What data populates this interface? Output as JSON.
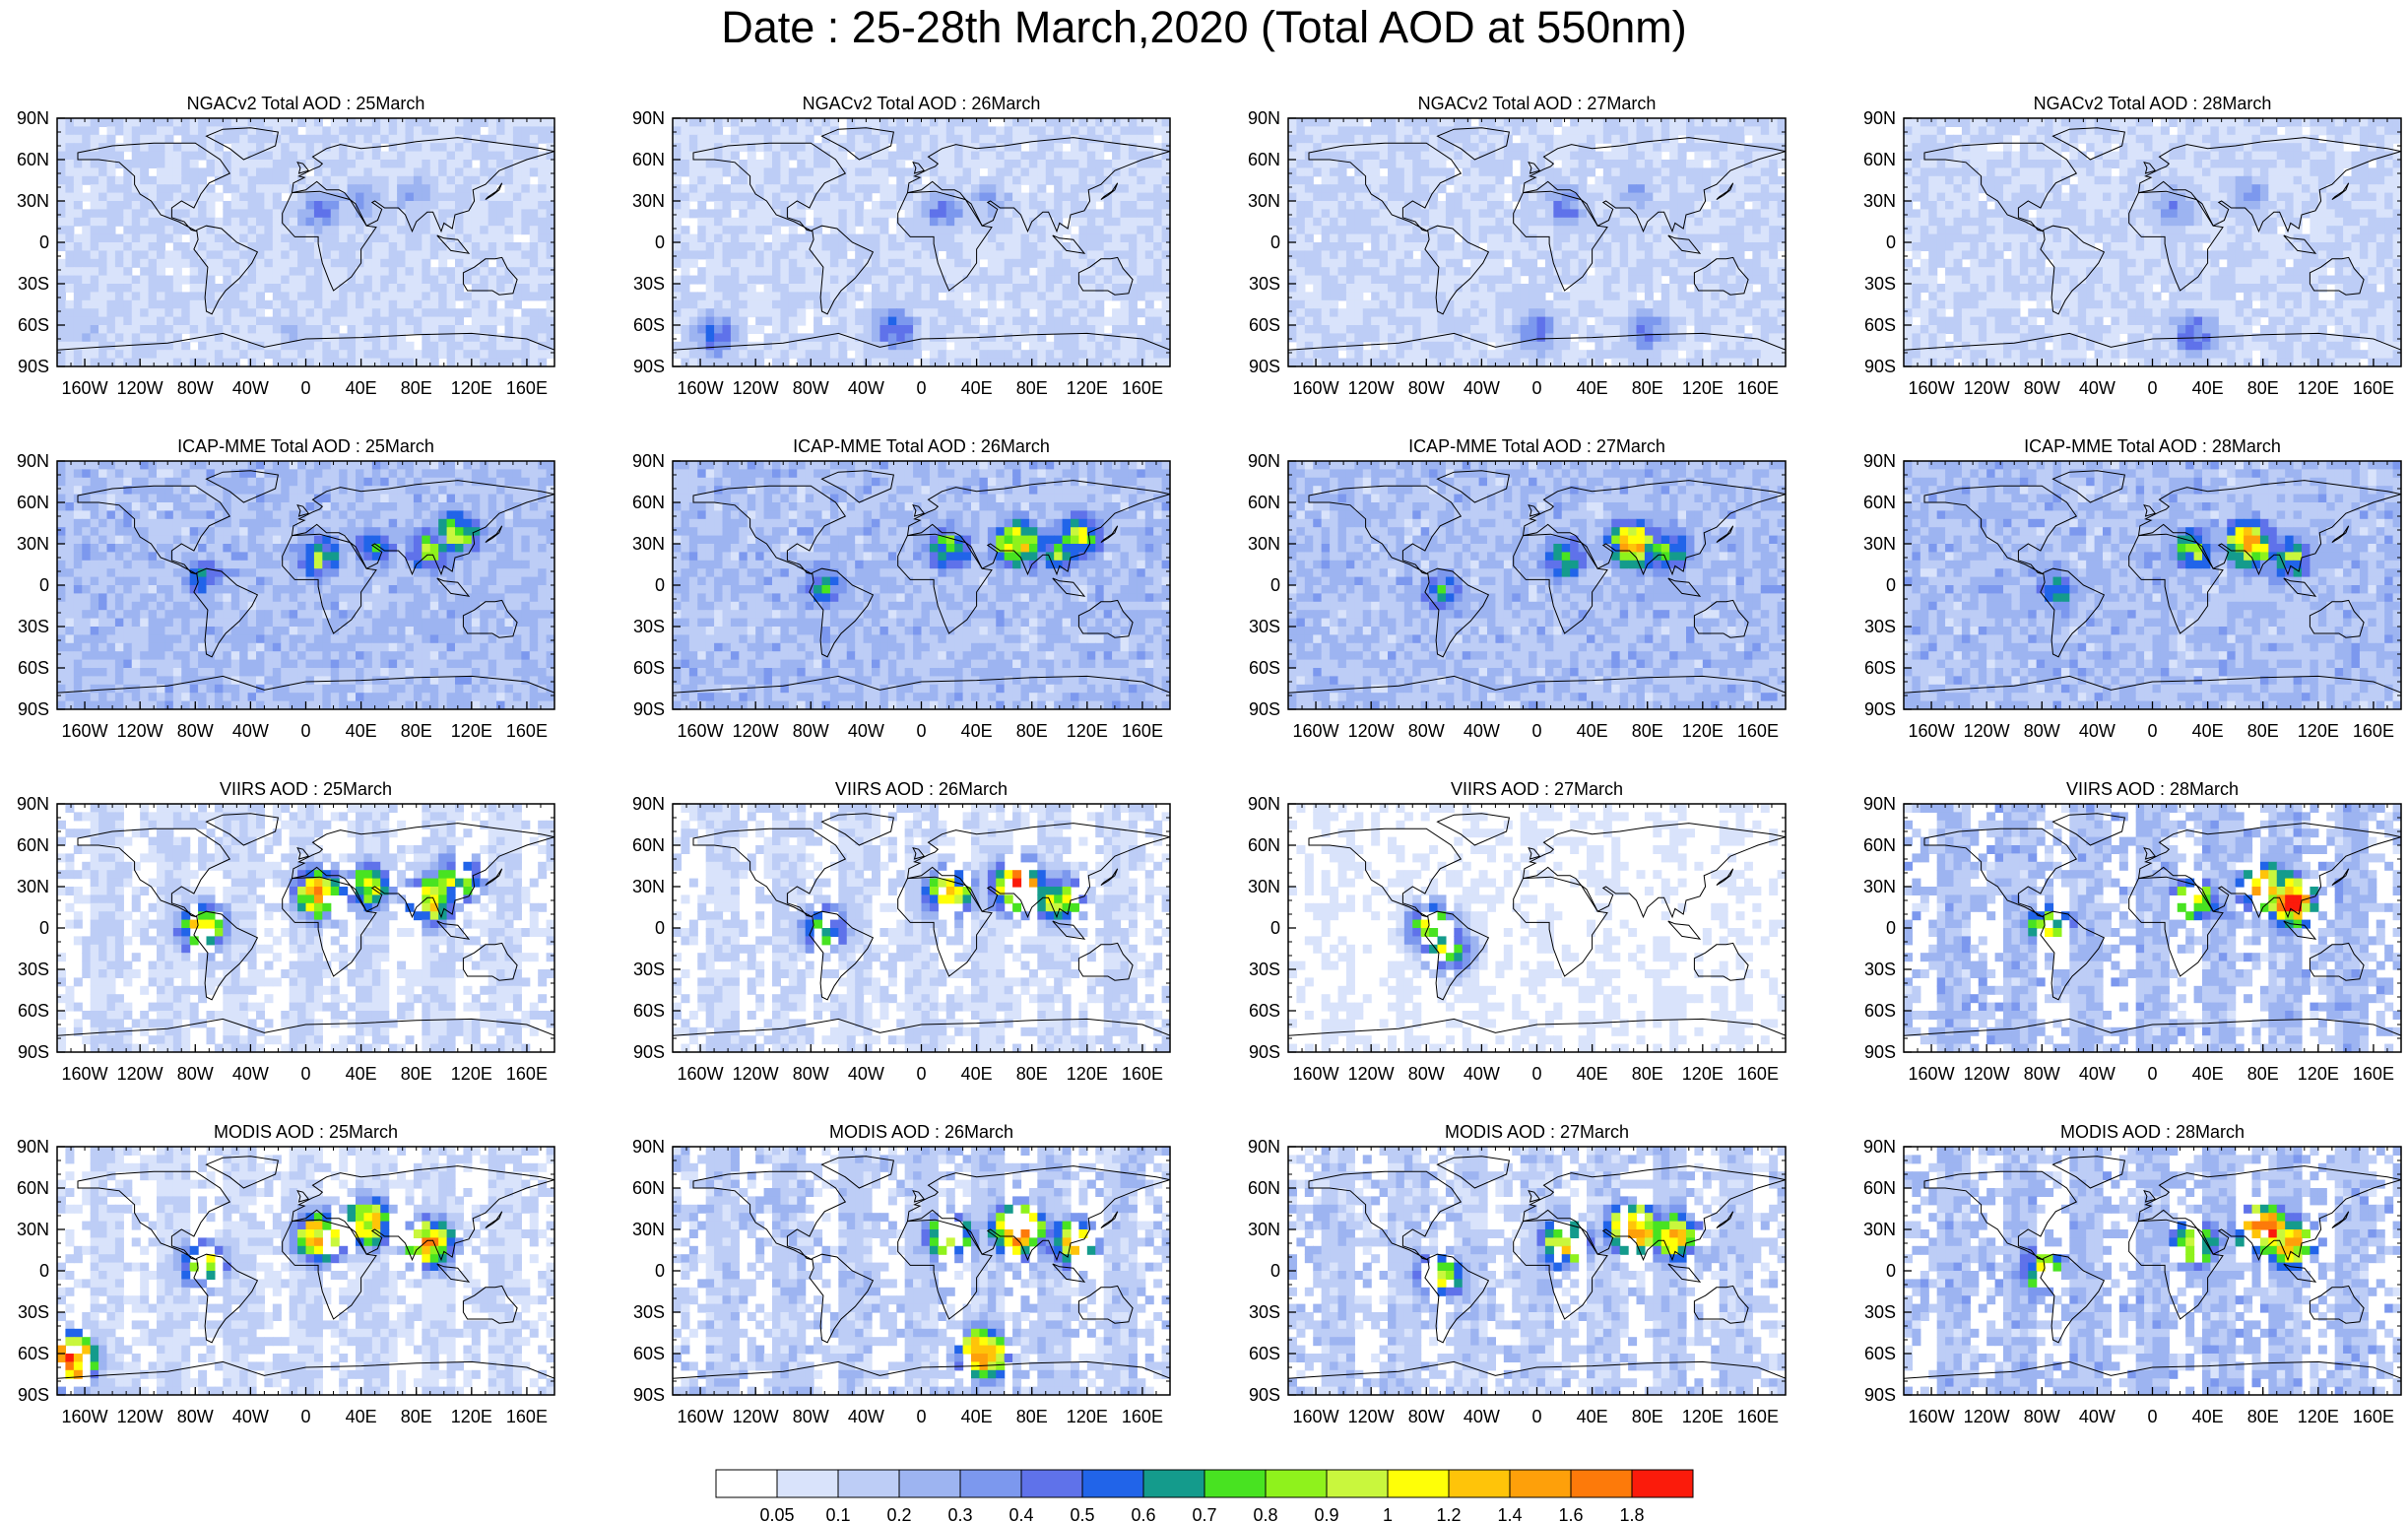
{
  "title": "Date : 25-28th March,2020 (Total AOD at 550nm)",
  "chart_data": [
    {
      "type": "heatmap",
      "title": "NGACv2 Total AOD : 25March",
      "model": "NGACv2",
      "day": "25March",
      "xticks": [
        "160W",
        "120W",
        "80W",
        "40W",
        "0",
        "40E",
        "80E",
        "120E",
        "160E"
      ],
      "yticks": [
        "90N",
        "60N",
        "30N",
        "0",
        "30S",
        "60S",
        "90S"
      ],
      "xlim": [
        -180,
        180
      ],
      "ylim": [
        -90,
        90
      ],
      "background_level": 0.1,
      "hotspots": [
        {
          "lon": 10,
          "lat": 22,
          "level": 0.4
        },
        {
          "lon": 40,
          "lat": 30,
          "level": 0.3
        },
        {
          "lon": 80,
          "lat": 35,
          "level": 0.3
        },
        {
          "lon": -160,
          "lat": -62,
          "level": 0.2
        },
        {
          "lon": -10,
          "lat": -65,
          "level": 0.2
        }
      ]
    },
    {
      "type": "heatmap",
      "title": "NGACv2 Total AOD : 26March",
      "model": "NGACv2",
      "day": "26March",
      "xticks": [
        "160W",
        "120W",
        "80W",
        "40W",
        "0",
        "40E",
        "80E",
        "120E",
        "160E"
      ],
      "yticks": [
        "90N",
        "60N",
        "30N",
        "0",
        "30S",
        "60S",
        "90S"
      ],
      "xlim": [
        -180,
        180
      ],
      "ylim": [
        -90,
        90
      ],
      "background_level": 0.1,
      "hotspots": [
        {
          "lon": 15,
          "lat": 22,
          "level": 0.4
        },
        {
          "lon": 50,
          "lat": 30,
          "level": 0.3
        },
        {
          "lon": -150,
          "lat": -67,
          "level": 0.5
        },
        {
          "lon": -20,
          "lat": -62,
          "level": 0.5
        }
      ]
    },
    {
      "type": "heatmap",
      "title": "NGACv2 Total AOD : 27March",
      "model": "NGACv2",
      "day": "27March",
      "xticks": [
        "160W",
        "120W",
        "80W",
        "40W",
        "0",
        "40E",
        "80E",
        "120E",
        "160E"
      ],
      "yticks": [
        "90N",
        "60N",
        "30N",
        "0",
        "30S",
        "60S",
        "90S"
      ],
      "xlim": [
        -180,
        180
      ],
      "ylim": [
        -90,
        90
      ],
      "background_level": 0.1,
      "hotspots": [
        {
          "lon": 20,
          "lat": 25,
          "level": 0.4
        },
        {
          "lon": 70,
          "lat": 35,
          "level": 0.3
        },
        {
          "lon": 0,
          "lat": -65,
          "level": 0.5
        },
        {
          "lon": 80,
          "lat": -65,
          "level": 0.4
        }
      ]
    },
    {
      "type": "heatmap",
      "title": "NGACv2 Total AOD : 28March",
      "model": "NGACv2",
      "day": "28March",
      "xticks": [
        "160W",
        "120W",
        "80W",
        "40W",
        "0",
        "40E",
        "80E",
        "120E",
        "160E"
      ],
      "yticks": [
        "90N",
        "60N",
        "30N",
        "0",
        "30S",
        "60S",
        "90S"
      ],
      "xlim": [
        -180,
        180
      ],
      "ylim": [
        -90,
        90
      ],
      "background_level": 0.1,
      "hotspots": [
        {
          "lon": 15,
          "lat": 25,
          "level": 0.4
        },
        {
          "lon": 70,
          "lat": 35,
          "level": 0.3
        },
        {
          "lon": 30,
          "lat": -67,
          "level": 0.5
        }
      ]
    },
    {
      "type": "heatmap",
      "title": "ICAP-MME Total AOD : 25March",
      "model": "ICAP-MME",
      "day": "25March",
      "xticks": [
        "160W",
        "120W",
        "80W",
        "40W",
        "0",
        "40E",
        "80E",
        "120E",
        "160E"
      ],
      "yticks": [
        "90N",
        "60N",
        "30N",
        "0",
        "30S",
        "60S",
        "90S"
      ],
      "xlim": [
        -180,
        180
      ],
      "ylim": [
        -90,
        90
      ],
      "background_level": 0.2,
      "hotspots": [
        {
          "lon": 10,
          "lat": 20,
          "level": 0.8
        },
        {
          "lon": 50,
          "lat": 28,
          "level": 0.6
        },
        {
          "lon": 90,
          "lat": 25,
          "level": 0.8
        },
        {
          "lon": 110,
          "lat": 38,
          "level": 0.9
        },
        {
          "lon": -75,
          "lat": 5,
          "level": 0.6
        }
      ]
    },
    {
      "type": "heatmap",
      "title": "ICAP-MME Total AOD : 26March",
      "model": "ICAP-MME",
      "day": "26March",
      "xticks": [
        "160W",
        "120W",
        "80W",
        "40W",
        "0",
        "40E",
        "80E",
        "120E",
        "160E"
      ],
      "yticks": [
        "90N",
        "60N",
        "30N",
        "0",
        "30S",
        "60S",
        "90S"
      ],
      "xlim": [
        -180,
        180
      ],
      "ylim": [
        -90,
        90
      ],
      "background_level": 0.2,
      "hotspots": [
        {
          "lon": 20,
          "lat": 25,
          "level": 0.8
        },
        {
          "lon": 70,
          "lat": 30,
          "level": 1.2
        },
        {
          "lon": 100,
          "lat": 25,
          "level": 0.8
        },
        {
          "lon": 115,
          "lat": 35,
          "level": 0.9
        },
        {
          "lon": -70,
          "lat": 0,
          "level": 0.6
        }
      ]
    },
    {
      "type": "heatmap",
      "title": "ICAP-MME Total AOD : 27March",
      "model": "ICAP-MME",
      "day": "27March",
      "xticks": [
        "160W",
        "120W",
        "80W",
        "40W",
        "0",
        "40E",
        "80E",
        "120E",
        "160E"
      ],
      "yticks": [
        "90N",
        "60N",
        "30N",
        "0",
        "30S",
        "60S",
        "90S"
      ],
      "xlim": [
        -180,
        180
      ],
      "ylim": [
        -90,
        90
      ],
      "background_level": 0.2,
      "hotspots": [
        {
          "lon": 20,
          "lat": 20,
          "level": 0.8
        },
        {
          "lon": 70,
          "lat": 30,
          "level": 1.4
        },
        {
          "lon": 95,
          "lat": 25,
          "level": 0.8
        },
        {
          "lon": -70,
          "lat": -5,
          "level": 0.6
        }
      ]
    },
    {
      "type": "heatmap",
      "title": "ICAP-MME Total AOD : 28March",
      "model": "ICAP-MME",
      "day": "28March",
      "xticks": [
        "160W",
        "120W",
        "80W",
        "40W",
        "0",
        "40E",
        "80E",
        "120E",
        "160E"
      ],
      "yticks": [
        "90N",
        "60N",
        "30N",
        "0",
        "30S",
        "60S",
        "90S"
      ],
      "xlim": [
        -180,
        180
      ],
      "ylim": [
        -90,
        90
      ],
      "background_level": 0.2,
      "hotspots": [
        {
          "lon": 30,
          "lat": 25,
          "level": 0.8
        },
        {
          "lon": 70,
          "lat": 30,
          "level": 1.4
        },
        {
          "lon": 100,
          "lat": 20,
          "level": 0.8
        },
        {
          "lon": -70,
          "lat": -5,
          "level": 0.6
        }
      ]
    },
    {
      "type": "heatmap",
      "title": "VIIRS AOD : 25March",
      "model": "VIIRS",
      "day": "25March",
      "xticks": [
        "160W",
        "120W",
        "80W",
        "40W",
        "0",
        "40E",
        "80E",
        "120E",
        "160E"
      ],
      "yticks": [
        "90N",
        "60N",
        "30N",
        "0",
        "30S",
        "60S",
        "90S"
      ],
      "xlim": [
        -180,
        180
      ],
      "ylim": [
        -90,
        90
      ],
      "background_level": 0.1,
      "hotspots": [
        {
          "lon": 10,
          "lat": 25,
          "level": 1.4
        },
        {
          "lon": 45,
          "lat": 30,
          "level": 1.0
        },
        {
          "lon": 90,
          "lat": 20,
          "level": 1.2
        },
        {
          "lon": 110,
          "lat": 35,
          "level": 1.0
        },
        {
          "lon": -75,
          "lat": 0,
          "level": 1.2
        }
      ]
    },
    {
      "type": "heatmap",
      "title": "VIIRS AOD : 26March",
      "model": "VIIRS",
      "day": "26March",
      "xticks": [
        "160W",
        "120W",
        "80W",
        "40W",
        "0",
        "40E",
        "80E",
        "120E",
        "160E"
      ],
      "yticks": [
        "90N",
        "60N",
        "30N",
        "0",
        "30S",
        "60S",
        "90S"
      ],
      "xlim": [
        -180,
        180
      ],
      "ylim": [
        -90,
        90
      ],
      "background_level": 0.1,
      "hotspots": [
        {
          "lon": 20,
          "lat": 25,
          "level": 1.2
        },
        {
          "lon": 70,
          "lat": 30,
          "level": 1.8
        },
        {
          "lon": 100,
          "lat": 20,
          "level": 1.0
        },
        {
          "lon": -70,
          "lat": 0,
          "level": 0.8
        }
      ]
    },
    {
      "type": "heatmap",
      "title": "VIIRS AOD : 27March",
      "model": "VIIRS",
      "day": "27March",
      "xticks": [
        "160W",
        "120W",
        "80W",
        "40W",
        "0",
        "40E",
        "80E",
        "120E",
        "160E"
      ],
      "yticks": [
        "90N",
        "60N",
        "30N",
        "0",
        "30S",
        "60S",
        "90S"
      ],
      "xlim": [
        -180,
        180
      ],
      "ylim": [
        -90,
        90
      ],
      "background_level": 0.05,
      "hotspots": [
        {
          "lon": -75,
          "lat": 0,
          "level": 1.0
        },
        {
          "lon": -65,
          "lat": -15,
          "level": 0.9
        }
      ]
    },
    {
      "type": "heatmap",
      "title": "VIIRS AOD : 28March",
      "model": "VIIRS",
      "day": "28March",
      "xticks": [
        "160W",
        "120W",
        "80W",
        "40W",
        "0",
        "40E",
        "80E",
        "120E",
        "160E"
      ],
      "yticks": [
        "90N",
        "60N",
        "30N",
        "0",
        "30S",
        "60S",
        "90S"
      ],
      "xlim": [
        -180,
        180
      ],
      "ylim": [
        -90,
        90
      ],
      "background_level": 0.2,
      "hotspots": [
        {
          "lon": 30,
          "lat": 20,
          "level": 1.0
        },
        {
          "lon": 80,
          "lat": 30,
          "level": 1.4
        },
        {
          "lon": 100,
          "lat": 20,
          "level": 1.8
        },
        {
          "lon": -75,
          "lat": 0,
          "level": 1.0
        }
      ]
    },
    {
      "type": "heatmap",
      "title": "MODIS AOD : 25March",
      "model": "MODIS",
      "day": "25March",
      "xticks": [
        "160W",
        "120W",
        "80W",
        "40W",
        "0",
        "40E",
        "80E",
        "120E",
        "160E"
      ],
      "yticks": [
        "90N",
        "60N",
        "30N",
        "0",
        "30S",
        "60S",
        "90S"
      ],
      "xlim": [
        -180,
        180
      ],
      "ylim": [
        -90,
        90
      ],
      "background_level": 0.1,
      "hotspots": [
        {
          "lon": 10,
          "lat": 25,
          "level": 1.4
        },
        {
          "lon": 45,
          "lat": 35,
          "level": 1.2
        },
        {
          "lon": 90,
          "lat": 20,
          "level": 1.4
        },
        {
          "lon": -75,
          "lat": 5,
          "level": 1.0
        },
        {
          "lon": -170,
          "lat": -65,
          "level": 1.8
        }
      ]
    },
    {
      "type": "heatmap",
      "title": "MODIS AOD : 26March",
      "model": "MODIS",
      "day": "26March",
      "xticks": [
        "160W",
        "120W",
        "80W",
        "40W",
        "0",
        "40E",
        "80E",
        "120E",
        "160E"
      ],
      "yticks": [
        "90N",
        "60N",
        "30N",
        "0",
        "30S",
        "60S",
        "90S"
      ],
      "xlim": [
        -180,
        180
      ],
      "ylim": [
        -90,
        90
      ],
      "background_level": 0.15,
      "hotspots": [
        {
          "lon": 20,
          "lat": 25,
          "level": 1.2
        },
        {
          "lon": 70,
          "lat": 30,
          "level": 1.8
        },
        {
          "lon": 110,
          "lat": 20,
          "level": 1.2
        },
        {
          "lon": 45,
          "lat": -60,
          "level": 1.6
        }
      ]
    },
    {
      "type": "heatmap",
      "title": "MODIS AOD : 27March",
      "model": "MODIS",
      "day": "27March",
      "xticks": [
        "160W",
        "120W",
        "80W",
        "40W",
        "0",
        "40E",
        "80E",
        "120E",
        "160E"
      ],
      "yticks": [
        "90N",
        "60N",
        "30N",
        "0",
        "30S",
        "60S",
        "90S"
      ],
      "xlim": [
        -180,
        180
      ],
      "ylim": [
        -90,
        90
      ],
      "background_level": 0.15,
      "hotspots": [
        {
          "lon": 20,
          "lat": 20,
          "level": 1.2
        },
        {
          "lon": 70,
          "lat": 30,
          "level": 1.8
        },
        {
          "lon": 100,
          "lat": 25,
          "level": 1.2
        },
        {
          "lon": -70,
          "lat": -5,
          "level": 1.0
        }
      ]
    },
    {
      "type": "heatmap",
      "title": "MODIS AOD : 28March",
      "model": "MODIS",
      "day": "28March",
      "xticks": [
        "160W",
        "120W",
        "80W",
        "40W",
        "0",
        "40E",
        "80E",
        "120E",
        "160E"
      ],
      "yticks": [
        "90N",
        "60N",
        "30N",
        "0",
        "30S",
        "60S",
        "90S"
      ],
      "xlim": [
        -180,
        180
      ],
      "ylim": [
        -90,
        90
      ],
      "background_level": 0.2,
      "hotspots": [
        {
          "lon": 30,
          "lat": 20,
          "level": 1.2
        },
        {
          "lon": 80,
          "lat": 30,
          "level": 1.8
        },
        {
          "lon": 100,
          "lat": 20,
          "level": 1.4
        },
        {
          "lon": -80,
          "lat": 0,
          "level": 1.0
        }
      ]
    }
  ],
  "colorbar": {
    "labels": [
      "0.05",
      "0.1",
      "0.2",
      "0.3",
      "0.4",
      "0.5",
      "0.6",
      "0.7",
      "0.8",
      "0.9",
      "1",
      "1.2",
      "1.4",
      "1.6",
      "1.8"
    ],
    "colors": [
      "#ffffff",
      "#d9e3fb",
      "#bdcdf6",
      "#9db4f1",
      "#7c98ee",
      "#5f72ea",
      "#2164e9",
      "#149b8c",
      "#48e321",
      "#8ff21c",
      "#c9f73d",
      "#ffff07",
      "#ffc409",
      "#fea00a",
      "#fd7a0a",
      "#fb1b0b"
    ]
  }
}
